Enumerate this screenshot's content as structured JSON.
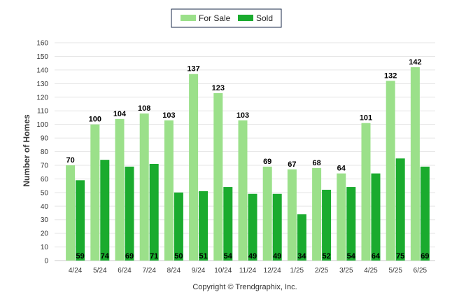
{
  "chart_data": {
    "type": "bar",
    "categories": [
      "4/24",
      "5/24",
      "6/24",
      "7/24",
      "8/24",
      "9/24",
      "10/24",
      "11/24",
      "12/24",
      "1/25",
      "2/25",
      "3/25",
      "4/25",
      "5/25",
      "6/25"
    ],
    "series": [
      {
        "name": "For Sale",
        "color": "#9be08a",
        "values": [
          70,
          100,
          104,
          108,
          103,
          137,
          123,
          103,
          69,
          67,
          68,
          64,
          101,
          132,
          142
        ]
      },
      {
        "name": "Sold",
        "color": "#1aab2e",
        "values": [
          59,
          74,
          69,
          71,
          50,
          51,
          54,
          49,
          49,
          34,
          52,
          54,
          64,
          75,
          69
        ]
      }
    ],
    "ylabel": "Number of Homes",
    "xlabel": "",
    "ylim": [
      0,
      160
    ],
    "yticks": [
      0,
      10,
      20,
      30,
      40,
      50,
      60,
      70,
      80,
      90,
      100,
      110,
      120,
      130,
      140,
      150,
      160
    ],
    "grid": true,
    "legend_position": "top-center"
  },
  "copyright": "Copyright © Trendgraphix, Inc."
}
